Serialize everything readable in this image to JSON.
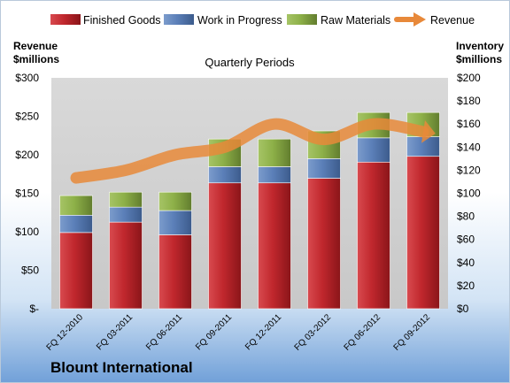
{
  "chart_data": {
    "type": "bar",
    "stacked": true,
    "title": "Quarterly Periods",
    "company": "Blount International",
    "categories": [
      "FQ 12-2010",
      "FQ 03-2011",
      "FQ 06-2011",
      "FQ 09-2011",
      "FQ 12-2011",
      "FQ 03-2012",
      "FQ 06-2012",
      "FQ 09-2012"
    ],
    "series": [
      {
        "name": "Finished Goods",
        "axis": "right",
        "color": "#c0272d",
        "values": [
          66,
          75,
          64,
          109,
          109,
          113,
          127,
          132
        ]
      },
      {
        "name": "Work in Progress",
        "axis": "right",
        "color": "#5b7fb8",
        "values": [
          15,
          13,
          21,
          14,
          14,
          17,
          21,
          17
        ]
      },
      {
        "name": "Raw Materials",
        "axis": "right",
        "color": "#8db048",
        "values": [
          17,
          13,
          16,
          24,
          24,
          24,
          22,
          21
        ]
      },
      {
        "name": "Revenue",
        "type": "line",
        "axis": "left",
        "color": "#e8893a",
        "values": [
          170,
          180,
          200,
          210,
          240,
          220,
          240,
          230
        ]
      }
    ],
    "left_axis": {
      "label_line1": "Revenue",
      "label_line2": "$millions",
      "ylim": [
        0,
        300
      ],
      "ticks": [
        "$-",
        "$50",
        "$100",
        "$150",
        "$200",
        "$250",
        "$300"
      ]
    },
    "right_axis": {
      "label_line1": "Inventory",
      "label_line2": "$millions",
      "ylim": [
        0,
        200
      ],
      "ticks": [
        "$0",
        "$20",
        "$40",
        "$60",
        "$80",
        "$100",
        "$120",
        "$140",
        "$160",
        "$180",
        "$200"
      ]
    },
    "legend_position": "top",
    "grid": false
  }
}
